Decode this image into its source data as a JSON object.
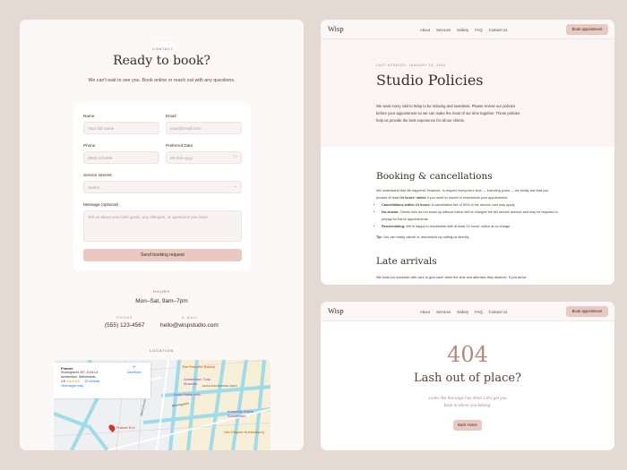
{
  "contact": {
    "eyebrow": "CONTACT",
    "title": "Ready to book?",
    "subtitle": "We can't wait to see you. Book online or reach out with any questions.",
    "form": {
      "name_label": "Name",
      "name_placeholder": "Your full name",
      "email_label": "Email",
      "email_placeholder": "your@email.com",
      "phone_label": "Phone",
      "phone_placeholder": "(555) 123456",
      "date_label": "Preferred Date",
      "date_placeholder": "dd-mm-yyyy",
      "service_label": "Service interest",
      "service_value": "Select...",
      "message_label": "Message (optional)",
      "message_placeholder": "Tell us about your lash goals, any allergies, or questions you have.",
      "submit_label": "Send booking request"
    },
    "hours_label": "HOURS",
    "hours_value": "Mon–Sat, 9am–7pm",
    "phone_label": "PHONE",
    "phone_value": "(555) 123-4567",
    "email_label": "E-MAIL",
    "email_value": "hello@wispstudio.com",
    "location_label": "LOCATION",
    "map": {
      "place_name": "Framer",
      "address_line1": "Rozengracht 207, 1016 LZ",
      "address_line2": "Amsterdam, Netherlands",
      "rating": "4.6",
      "stars": "★★★★★",
      "reviews": "25 reviews",
      "directions": "Directions",
      "larger_map": "View larger map",
      "pois": [
        "The Pancake Bakery",
        "Amsterdam Tulip Museum",
        "Anne Frank Huis",
        "Koninklijk Paleis Amsterdam",
        "Framer B.V.",
        "Van Stapele Koekmakerij"
      ],
      "streets": [
        "GRACHTENGORDEL-WEST",
        "Marnixstraat",
        "Rozengracht",
        "Bloemgracht"
      ]
    }
  },
  "nav": {
    "logo": "Wisp",
    "links": [
      "About",
      "Services",
      "Gallery",
      "FAQ",
      "Contact Us"
    ],
    "cta": "Book appointment"
  },
  "policies": {
    "updated": "LAST UPDATED: JANUARY 15, 2026",
    "title": "Studio Policies",
    "intro": "We want every visit to Wisp to be relaxing and seamless. Please review our policies before your appointment so we can make the most of our time together. These policies help us provide the best experience for all our clients.",
    "section1_title": "Booking & cancellations",
    "section1_p1": "We understand that life happens! However, to respect everyone's time — including yours — we kindly ask that you provide at least",
    "section1_bold": "24 hours' notice",
    "section1_p2": "if you need to cancel or reschedule your appointment.",
    "bullets": [
      {
        "bold": "Cancellations within 24 hours:",
        "text": " A cancellation fee of 50% of the service cost may apply."
      },
      {
        "bold": "No-shows:",
        "text": " Clients who do not show up without notice will be charged the full service amount and may be required to prepay for future appointments."
      },
      {
        "bold": "Rescheduling:",
        "text": " We're happy to reschedule with at least 24 hours' notice at no charge."
      }
    ],
    "tip_bold": "Tip:",
    "tip_text": " You can easily cancel or reschedule by calling us directly.",
    "section2_title": "Late arrivals",
    "section2_p": "We build our schedule with care to give each client the time and attention they deserve. If you arrive"
  },
  "notfound": {
    "code": "404",
    "title": "Lash out of place?",
    "text": "Looks like this page has shed. Let's get you back to where you belong.",
    "button": "Back Home"
  },
  "colors": {
    "background": "#e5d9d3",
    "accent": "#e9c9c2",
    "code": "#b58a7e"
  }
}
